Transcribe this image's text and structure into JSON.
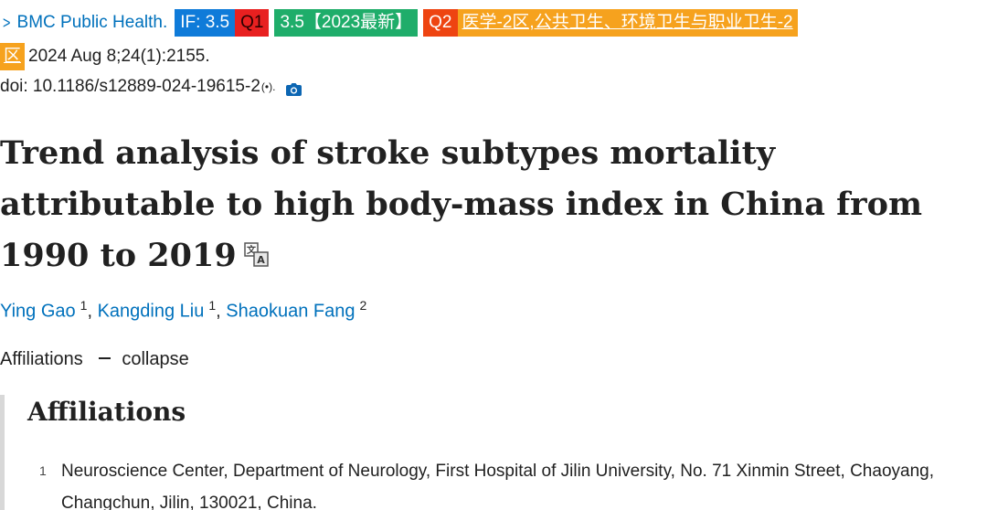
{
  "citation": {
    "chevron": ">",
    "journal": "BMC Public Health.",
    "badges": {
      "impact_factor": "IF: 3.5",
      "jcr_quartile": "Q1",
      "zk_rank": "3.5【2023最新】",
      "cas_quartile": "Q2",
      "cas_category_part1": "医学-2区,公共卫生、环境卫生与职业卫生-2",
      "cas_category_part2": "区"
    },
    "date_volume": "2024 Aug 8;24(1):2155.",
    "doi": "doi: 10.1186/s12889-024-19615-2",
    "doi_suffix": "(•).",
    "camera_icon": "camera-icon"
  },
  "article": {
    "title": "Trend analysis of stroke subtypes mortality attributable to high body-mass index in China from 1990 to 2019",
    "translate_icon": "translate-icon"
  },
  "authors": [
    {
      "name": "Ying Gao",
      "affiliation": "1"
    },
    {
      "name": "Kangding Liu",
      "affiliation": "1"
    },
    {
      "name": "Shaokuan Fang",
      "affiliation": "2"
    }
  ],
  "affiliations_toggle": {
    "label": "Affiliations",
    "action": "collapse"
  },
  "affiliations_panel": {
    "heading": "Affiliations",
    "items": [
      {
        "number": "1",
        "text": "Neuroscience Center, Department of Neurology, First Hospital of Jilin University, No. 71 Xinmin Street, Chaoyang, Changchun, Jilin, 130021, China."
      }
    ]
  },
  "colors": {
    "link": "#0071bc",
    "badge_if": "#0f7bd9",
    "badge_q1": "#e82020",
    "badge_zk": "#1fad6a",
    "badge_q2": "#ee4411",
    "badge_cas": "#f6a21e"
  }
}
